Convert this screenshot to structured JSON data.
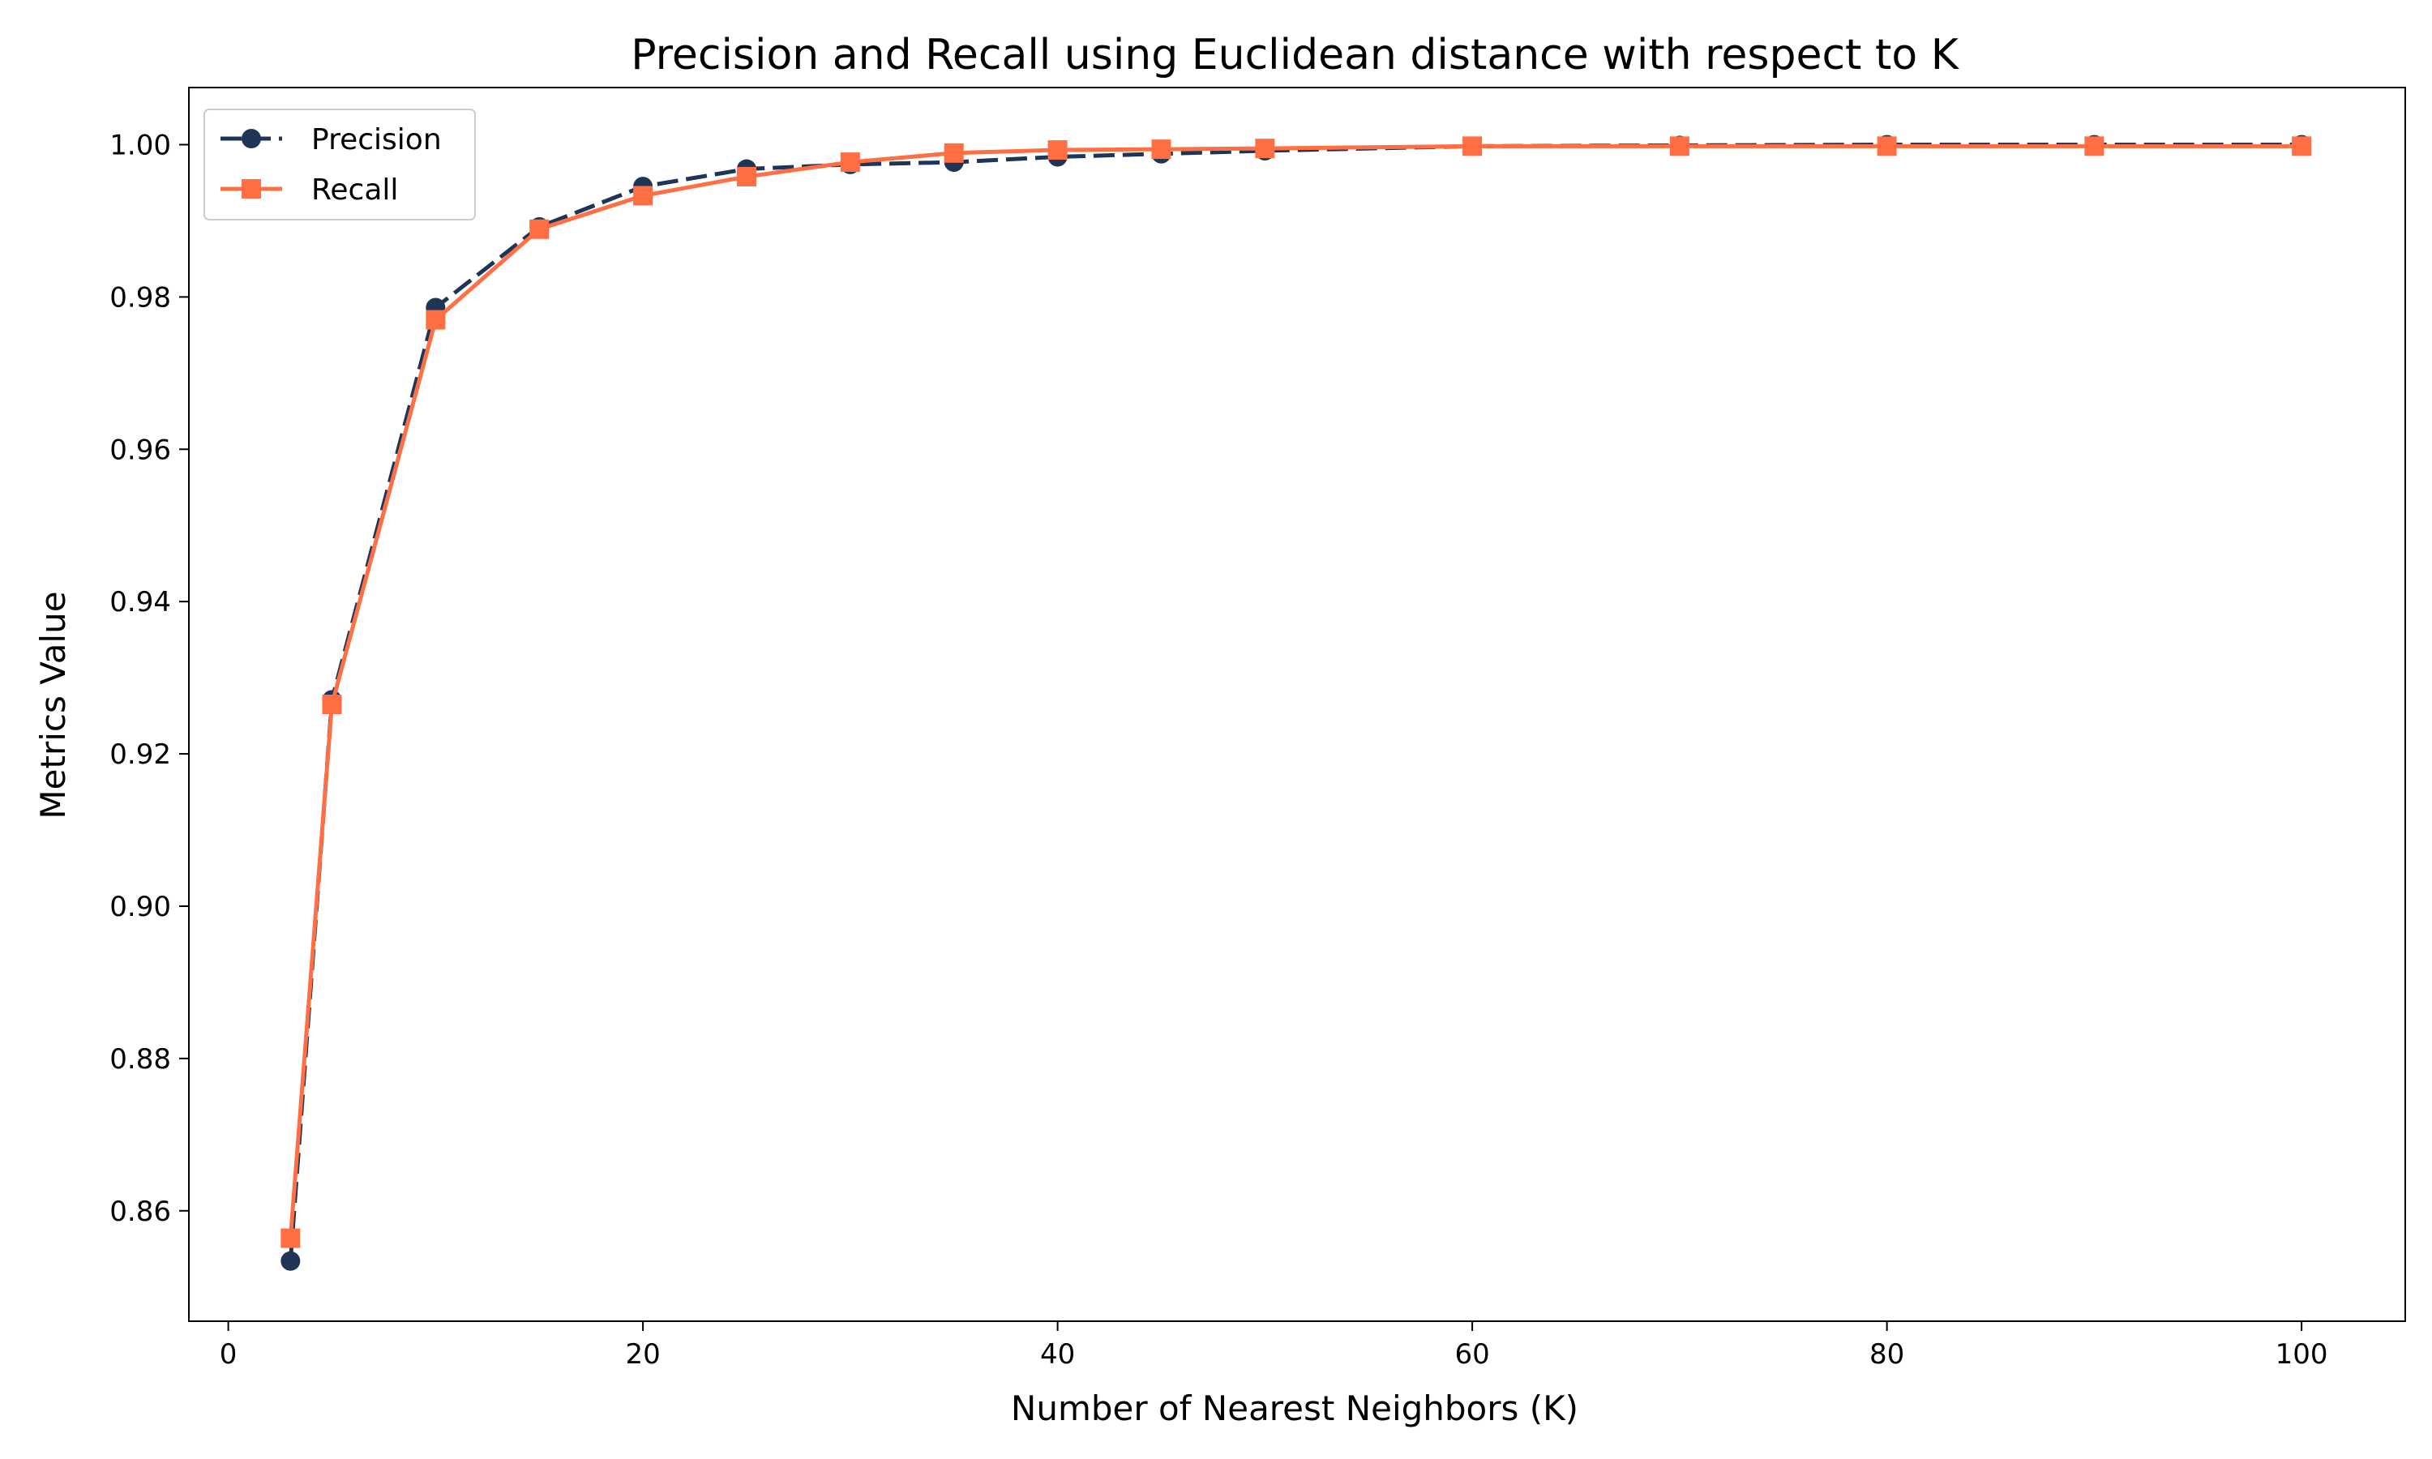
{
  "chart_data": {
    "type": "line",
    "title": "Precision and Recall using Euclidean distance with respect to K",
    "xlabel": "Number of Nearest Neighbors (K)",
    "ylabel": "Metrics Value",
    "xlim": [
      -1.9,
      105
    ],
    "ylim": [
      0.8455,
      1.0075
    ],
    "xticks": [
      0,
      20,
      40,
      60,
      80,
      100
    ],
    "yticks": [
      0.86,
      0.88,
      0.9,
      0.92,
      0.94,
      0.96,
      0.98,
      1.0
    ],
    "xtick_labels": [
      "0",
      "20",
      "40",
      "60",
      "80",
      "100"
    ],
    "ytick_labels": [
      "0.86",
      "0.88",
      "0.90",
      "0.92",
      "0.94",
      "0.96",
      "0.98",
      "1.00"
    ],
    "grid": false,
    "legend_position": "top-left",
    "x": [
      3,
      5,
      10,
      15,
      20,
      25,
      30,
      35,
      40,
      45,
      50,
      60,
      70,
      80,
      90,
      100
    ],
    "series": [
      {
        "name": "Precision",
        "color": "#1f3557",
        "line_style": "dashed",
        "marker": "circle",
        "values": [
          0.8534,
          0.9271,
          0.9786,
          0.9892,
          0.9945,
          0.9968,
          0.9974,
          0.9977,
          0.9984,
          0.9988,
          0.9992,
          0.9998,
          0.9999,
          1.0,
          1.0,
          1.0
        ]
      },
      {
        "name": "Recall",
        "color": "#ff6f43",
        "line_style": "solid",
        "marker": "square",
        "values": [
          0.8564,
          0.9265,
          0.977,
          0.9889,
          0.9933,
          0.9958,
          0.9977,
          0.9989,
          0.9993,
          0.9994,
          0.9995,
          0.9998,
          0.9998,
          0.9998,
          0.9998,
          0.9998
        ]
      }
    ]
  }
}
